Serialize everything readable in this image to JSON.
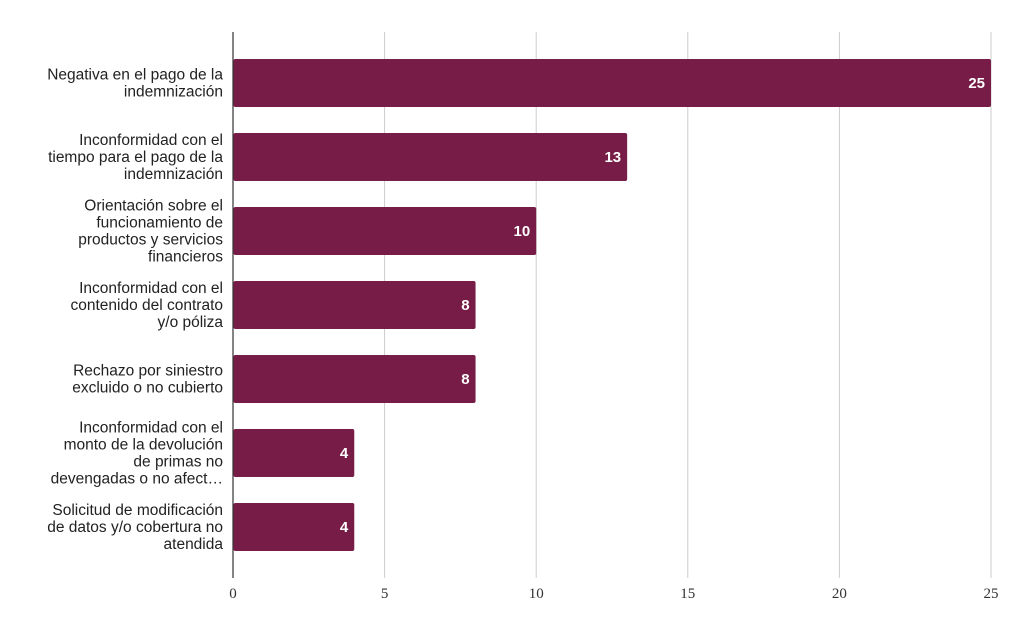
{
  "chart_data": {
    "type": "bar",
    "orientation": "horizontal",
    "title": "",
    "xlabel": "",
    "ylabel": "",
    "xlim": [
      0,
      25
    ],
    "x_ticks": [
      "0",
      "5",
      "10",
      "15",
      "20",
      "25"
    ],
    "grid": true,
    "categories": [
      [
        "Negativa en el pago de la",
        "indemnización"
      ],
      [
        "Inconformidad con el",
        "tiempo para el pago de la",
        "indemnización"
      ],
      [
        "Orientación sobre el",
        "funcionamiento de",
        "productos y servicios",
        "financieros"
      ],
      [
        "Inconformidad con el",
        "contenido del contrato",
        "y/o póliza"
      ],
      [
        "Rechazo por siniestro",
        "excluido o no cubierto"
      ],
      [
        "Inconformidad con el",
        "monto de la devolución",
        "de primas no",
        "devengadas o no afect…"
      ],
      [
        "Solicitud de modificación",
        "de datos y/o cobertura no",
        "atendida"
      ]
    ],
    "values": [
      25,
      13,
      10,
      8,
      8,
      4,
      4
    ],
    "value_labels": [
      "25",
      "13",
      "10",
      "8",
      "8",
      "4",
      "4"
    ],
    "bar_color": "#761c46",
    "grid_color": "#cccccc",
    "axis_color": "#333333"
  }
}
